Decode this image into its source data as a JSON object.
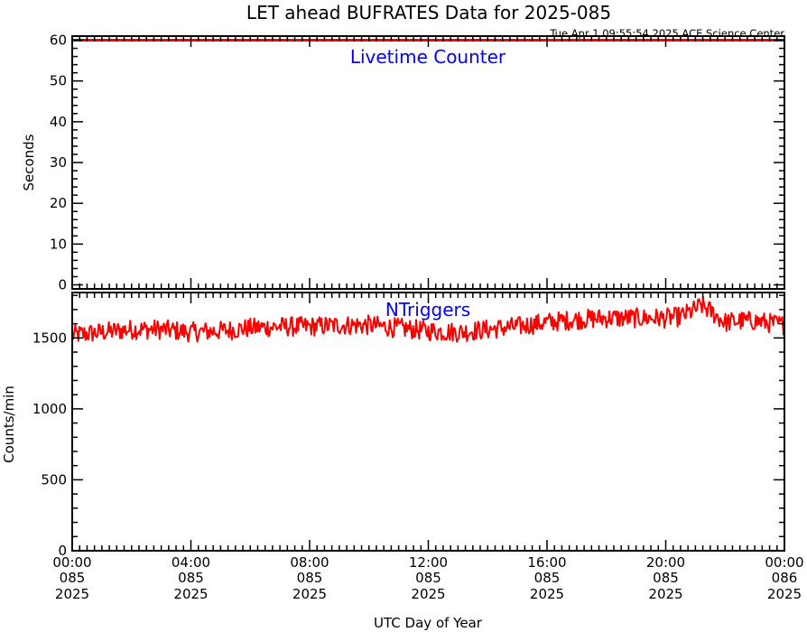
{
  "chart_data": {
    "title": "LET ahead BUFRATES Data for 2025-085",
    "timestamp": "Tue Apr  1 09:55:54 2025 ACE Science Center",
    "xlabel": "UTC Day of Year",
    "x_range_hours": [
      0,
      24
    ],
    "x_ticks": [
      {
        "hour": 0,
        "time": "00:00",
        "day": "085",
        "year": "2025"
      },
      {
        "hour": 4,
        "time": "04:00",
        "day": "085",
        "year": "2025"
      },
      {
        "hour": 8,
        "time": "08:00",
        "day": "085",
        "year": "2025"
      },
      {
        "hour": 12,
        "time": "12:00",
        "day": "085",
        "year": "2025"
      },
      {
        "hour": 16,
        "time": "16:00",
        "day": "085",
        "year": "2025"
      },
      {
        "hour": 20,
        "time": "20:00",
        "day": "085",
        "year": "2025"
      },
      {
        "hour": 24,
        "time": "00:00",
        "day": "086",
        "year": "2025"
      }
    ],
    "panels": [
      {
        "type": "line",
        "series_label": "Livetime Counter",
        "ylabel": "Seconds",
        "ylim": [
          -1,
          61
        ],
        "yticks": [
          0,
          10,
          20,
          30,
          40,
          50,
          60
        ],
        "series_color": "#ff0000",
        "label_color": "#0000ff",
        "x_hours": [
          0,
          24
        ],
        "values": [
          60,
          60
        ]
      },
      {
        "type": "line",
        "series_label": "NTriggers",
        "ylabel": "Counts/min",
        "ylim": [
          0,
          1820
        ],
        "yticks": [
          0,
          500,
          1000,
          1500
        ],
        "series_color": "#ff0000",
        "label_color": "#0000ff",
        "x_hours": [
          0,
          1,
          2,
          3,
          4,
          5,
          6,
          7,
          8,
          9,
          10,
          11,
          12,
          13,
          14,
          15,
          16,
          17,
          18,
          19,
          20,
          20.5,
          21,
          21.2,
          21.5,
          22,
          22.5,
          23,
          24
        ],
        "values": [
          1520,
          1540,
          1560,
          1560,
          1540,
          1550,
          1570,
          1580,
          1580,
          1590,
          1590,
          1570,
          1550,
          1540,
          1560,
          1580,
          1610,
          1630,
          1640,
          1640,
          1640,
          1650,
          1700,
          1730,
          1690,
          1610,
          1620,
          1620,
          1590
        ],
        "noise_amplitude": 70
      }
    ]
  }
}
